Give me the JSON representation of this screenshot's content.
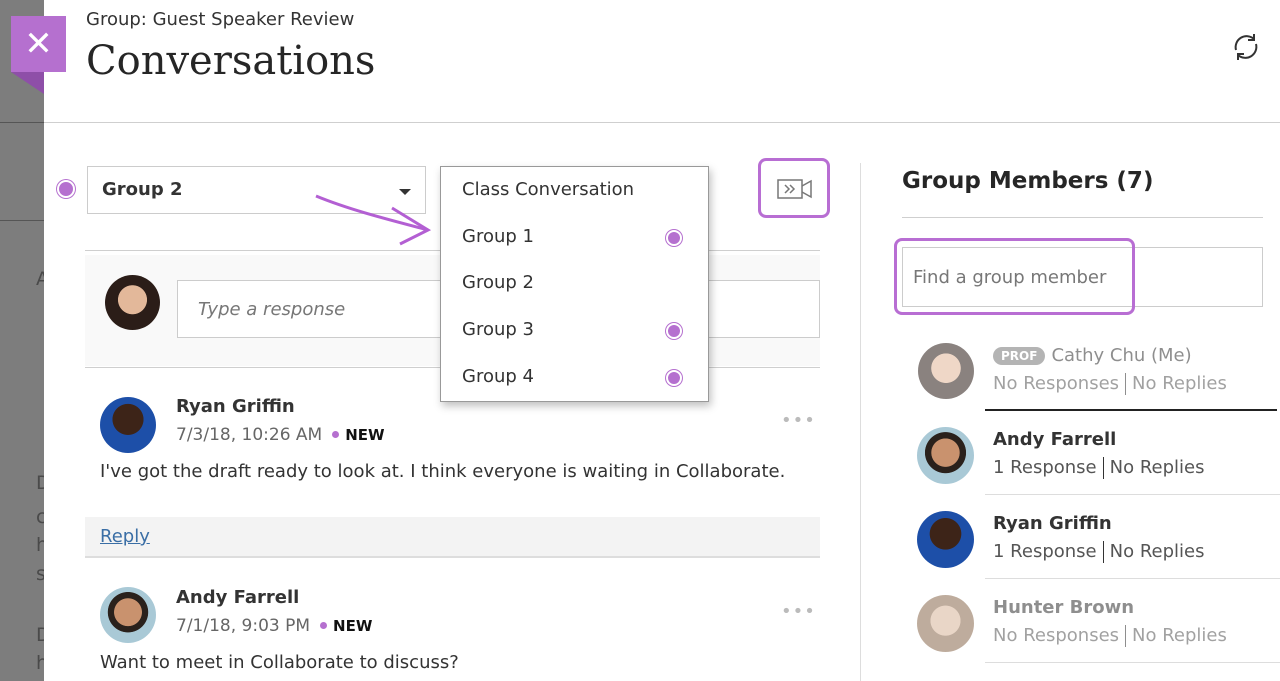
{
  "background_fragments": [
    "A",
    "D",
    "c",
    "h",
    "s",
    "D",
    "h"
  ],
  "header": {
    "subtitle": "Group: Guest Speaker Review",
    "title": "Conversations",
    "close_icon": "close-icon",
    "refresh_icon": "refresh-icon"
  },
  "group_select": {
    "value": "Group 2"
  },
  "dropdown": {
    "items": [
      {
        "label": "Class Conversation",
        "unread": false
      },
      {
        "label": "Group 1",
        "unread": true
      },
      {
        "label": "Group 2",
        "unread": false
      },
      {
        "label": "Group 3",
        "unread": true
      },
      {
        "label": "Group 4",
        "unread": true
      }
    ]
  },
  "video_button": {
    "icon": "collaborate-video-icon"
  },
  "response": {
    "placeholder": "Type a response"
  },
  "posts": [
    {
      "author": "Ryan Griffin",
      "date": "7/3/18, 10:26 AM",
      "badge": "NEW",
      "text": "I've got the draft ready to look at. I think everyone is waiting in Collaborate.",
      "reply": "Reply"
    },
    {
      "author": "Andy Farrell",
      "date": "7/1/18, 9:03 PM",
      "badge": "NEW",
      "text": "Want to meet in Collaborate to discuss?"
    }
  ],
  "members": {
    "title": "Group Members (7)",
    "search_placeholder": "Find a group member",
    "items": [
      {
        "name": "Cathy Chu (Me)",
        "role": "PROF",
        "responses": "No Responses",
        "replies": "No Replies"
      },
      {
        "name": "Andy Farrell",
        "responses": "1 Response",
        "replies": "No Replies"
      },
      {
        "name": "Ryan Griffin",
        "responses": "1 Response",
        "replies": "No Replies"
      },
      {
        "name": "Hunter Brown",
        "responses": "No Responses",
        "replies": "No Replies"
      }
    ]
  },
  "colors": {
    "accent": "#b570cf",
    "overlay": "#7d7d7d"
  }
}
